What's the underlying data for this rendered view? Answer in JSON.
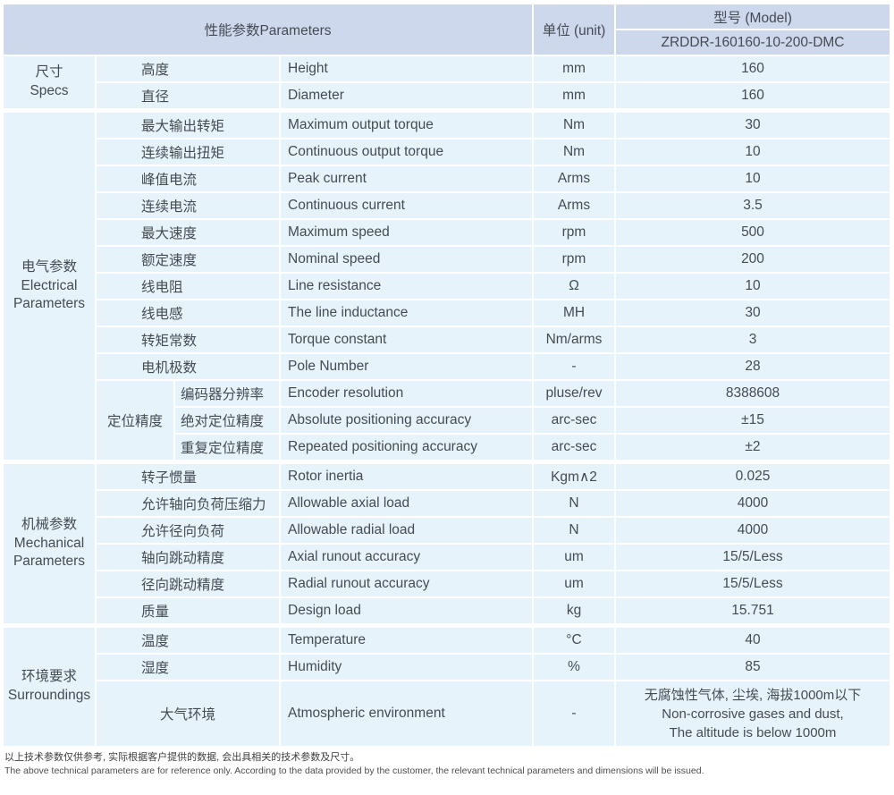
{
  "colors": {
    "header_bg": "#cdd8ec",
    "row_bg": "#e6f3fb",
    "grid": "#ffffff",
    "text": "#464b52"
  },
  "table": {
    "header": {
      "params": "性能参数Parameters",
      "unit": "单位 (unit)",
      "model_label": "型号 (Model)",
      "model_value": "ZRDDR-160160-10-200-DMC"
    },
    "sections": [
      {
        "label_cn": "尺寸",
        "label_en": "Specs",
        "rows": [
          {
            "cn": "高度",
            "en": "Height",
            "unit": "mm",
            "val": "160"
          },
          {
            "cn": "直径",
            "en": "Diameter",
            "unit": "mm",
            "val": "160"
          }
        ]
      },
      {
        "label_cn": "电气参数",
        "label_en": "Electrical Parameters",
        "rows": [
          {
            "cn": "最大输出转矩",
            "en": "Maximum output torque",
            "unit": "Nm",
            "val": "30"
          },
          {
            "cn": "连续输出扭矩",
            "en": "Continuous output torque",
            "unit": "Nm",
            "val": "10"
          },
          {
            "cn": "峰值电流",
            "en": "Peak current",
            "unit": "Arms",
            "val": "10"
          },
          {
            "cn": "连续电流",
            "en": "Continuous current",
            "unit": "Arms",
            "val": "3.5"
          },
          {
            "cn": "最大速度",
            "en": "Maximum speed",
            "unit": "rpm",
            "val": "500"
          },
          {
            "cn": "额定速度",
            "en": "Nominal speed",
            "unit": "rpm",
            "val": "200"
          },
          {
            "cn": "线电阻",
            "en": "Line resistance",
            "unit": "Ω",
            "val": "10"
          },
          {
            "cn": "线电感",
            "en": "The line inductance",
            "unit": "MH",
            "val": "30"
          },
          {
            "cn": "转矩常数",
            "en": "Torque constant",
            "unit": "Nm/arms",
            "val": "3"
          },
          {
            "cn": "电机极数",
            "en": "Pole Number",
            "unit": "-",
            "val": "28"
          },
          {
            "group": "定位精度",
            "group_rows": 3,
            "sub": true,
            "cn": "编码器分辨率",
            "en": "Encoder resolution",
            "unit": "pluse/rev",
            "val": "8388608"
          },
          {
            "sub": true,
            "cn": "绝对定位精度",
            "en": "Absolute positioning accuracy",
            "unit": "arc-sec",
            "val": "±15"
          },
          {
            "sub": true,
            "cn": "重复定位精度",
            "en": "Repeated positioning accuracy",
            "unit": "arc-sec",
            "val": "±2"
          }
        ]
      },
      {
        "label_cn": "机械参数",
        "label_en": "Mechanical Parameters",
        "rows": [
          {
            "cn": "转子惯量",
            "en": "Rotor inertia",
            "unit": "Kgm∧2",
            "val": "0.025"
          },
          {
            "cn": "允许轴向负荷压缩力",
            "en": "Allowable axial load",
            "unit": "N",
            "val": "4000"
          },
          {
            "cn": "允许径向负荷",
            "en": "Allowable radial load",
            "unit": "N",
            "val": "4000"
          },
          {
            "cn": "轴向跳动精度",
            "en": "Axial runout accuracy",
            "unit": "um",
            "val": "15/5/Less"
          },
          {
            "cn": "径向跳动精度",
            "en": "Radial runout accuracy",
            "unit": "um",
            "val": "15/5/Less"
          },
          {
            "cn": "质量",
            "en": "Design load",
            "unit": "kg",
            "val": "15.751"
          }
        ]
      },
      {
        "label_cn": "环境要求",
        "label_en": "Surroundings",
        "rows": [
          {
            "cn": "温度",
            "en": "Temperature",
            "unit": "°C",
            "val": "40"
          },
          {
            "cn": "湿度",
            "en": "Humidity",
            "unit": "%",
            "val": "85"
          },
          {
            "cn": "大气环境",
            "en": "Atmospheric environment",
            "unit": "-",
            "center": true,
            "val": [
              "无腐蚀性气体, 尘埃, 海拔1000m以下",
              "Non-corrosive gases and dust,",
              "The altitude is below 1000m"
            ]
          }
        ]
      }
    ]
  },
  "footer": {
    "line_cn": "以上技术参数仅供参考, 实际根据客户提供的数据, 会出具相关的技术参数及尺寸。",
    "line_en": "The above technical parameters are for reference only. According to the data provided by the customer, the relevant technical parameters and dimensions will be issued."
  }
}
